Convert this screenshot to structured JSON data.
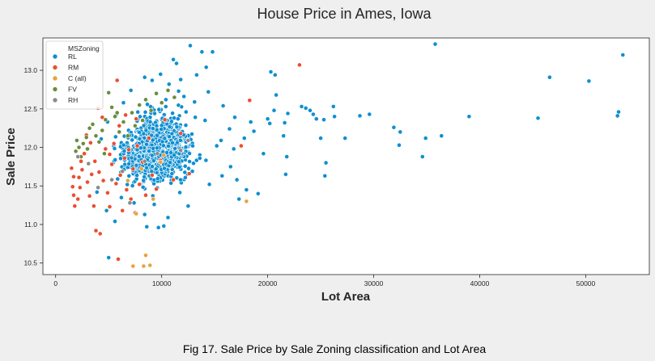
{
  "figure": {
    "caption": "Fig 17. Sale Price by Sale Zoning classification and Lot Area",
    "background": "#efefef"
  },
  "chart_data": {
    "type": "scatter",
    "title": "House Price in Ames, Iowa",
    "xlabel": "Lot Area",
    "ylabel": "Sale Price",
    "xlim": [
      -1200,
      56000
    ],
    "ylim": [
      10.35,
      13.42
    ],
    "x_ticks": [
      0,
      10000,
      20000,
      30000,
      40000,
      50000
    ],
    "y_ticks": [
      10.5,
      11.0,
      11.5,
      12.0,
      12.5,
      13.0
    ],
    "grid": false,
    "legend": {
      "title": "MSZoning",
      "placement": "upper-left",
      "entries": [
        "RL",
        "RM",
        "C (all)",
        "FV",
        "RH"
      ]
    },
    "series": [
      {
        "name": "RL",
        "color": "#0f8fd1",
        "points": [
          [
            35800,
            13.34
          ],
          [
            53500,
            13.2
          ],
          [
            46600,
            12.91
          ],
          [
            50300,
            12.86
          ],
          [
            53100,
            12.46
          ],
          [
            53000,
            12.41
          ],
          [
            45500,
            12.38
          ],
          [
            39000,
            12.4
          ],
          [
            36400,
            12.15
          ],
          [
            34600,
            11.88
          ],
          [
            34900,
            12.12
          ],
          [
            32500,
            12.2
          ],
          [
            32400,
            12.03
          ],
          [
            31900,
            12.26
          ],
          [
            29600,
            12.43
          ],
          [
            28700,
            12.41
          ],
          [
            27300,
            12.12
          ],
          [
            26300,
            12.4
          ],
          [
            26200,
            12.53
          ],
          [
            25400,
            11.63
          ],
          [
            25500,
            11.8
          ],
          [
            25300,
            12.36
          ],
          [
            25000,
            12.12
          ],
          [
            24600,
            12.37
          ],
          [
            24300,
            12.43
          ],
          [
            24000,
            12.48
          ],
          [
            23600,
            12.51
          ],
          [
            23200,
            12.53
          ],
          [
            21700,
            11.65
          ],
          [
            21800,
            11.88
          ],
          [
            21600,
            12.32
          ],
          [
            21900,
            12.44
          ],
          [
            21500,
            12.15
          ],
          [
            20700,
            12.94
          ],
          [
            20300,
            12.98
          ],
          [
            20800,
            12.68
          ],
          [
            20600,
            12.48
          ],
          [
            20200,
            12.31
          ],
          [
            20000,
            12.37
          ],
          [
            19600,
            11.92
          ],
          [
            19100,
            11.4
          ],
          [
            18700,
            12.21
          ],
          [
            18400,
            12.33
          ],
          [
            17800,
            12.12
          ],
          [
            17300,
            11.33
          ],
          [
            16800,
            11.98
          ],
          [
            16400,
            12.24
          ],
          [
            15800,
            12.54
          ],
          [
            15600,
            12.09
          ],
          [
            14800,
            13.24
          ],
          [
            14400,
            12.72
          ],
          [
            14200,
            13.04
          ],
          [
            13800,
            13.24
          ],
          [
            13300,
            12.94
          ],
          [
            12700,
            13.32
          ],
          [
            12500,
            11.24
          ],
          [
            12100,
            12.66
          ],
          [
            11800,
            12.88
          ],
          [
            11400,
            13.09
          ],
          [
            11100,
            13.14
          ],
          [
            10600,
            11.09
          ],
          [
            10200,
            10.98
          ],
          [
            9700,
            10.96
          ],
          [
            9300,
            11.26
          ],
          [
            8600,
            10.97
          ],
          [
            8400,
            11.13
          ],
          [
            5000,
            10.57
          ],
          [
            8400,
            12.91
          ],
          [
            9100,
            12.87
          ],
          [
            9900,
            12.95
          ],
          [
            10700,
            12.82
          ],
          [
            13100,
            12.59
          ],
          [
            14100,
            12.35
          ],
          [
            15200,
            12.02
          ],
          [
            16500,
            11.75
          ],
          [
            17100,
            11.58
          ],
          [
            18000,
            11.45
          ],
          [
            7100,
            12.74
          ],
          [
            6400,
            12.58
          ],
          [
            5700,
            12.42
          ],
          [
            4900,
            12.33
          ],
          [
            4300,
            12.11
          ],
          [
            3900,
            11.42
          ],
          [
            4800,
            11.18
          ],
          [
            5600,
            11.04
          ],
          [
            6200,
            11.35
          ],
          [
            7400,
            11.28
          ],
          [
            12900,
            11.69
          ],
          [
            13600,
            11.86
          ],
          [
            14500,
            11.52
          ],
          [
            15700,
            11.63
          ],
          [
            16900,
            12.39
          ],
          [
            11600,
            12.73
          ],
          [
            12300,
            12.46
          ],
          [
            10400,
            12.62
          ]
        ]
      },
      {
        "name": "RM",
        "color": "#ed4d30",
        "points": [
          [
            1500,
            11.73
          ],
          [
            1700,
            11.62
          ],
          [
            1600,
            11.49
          ],
          [
            1700,
            11.38
          ],
          [
            1800,
            11.24
          ],
          [
            2100,
            11.33
          ],
          [
            2200,
            11.61
          ],
          [
            2400,
            11.82
          ],
          [
            2500,
            11.71
          ],
          [
            2700,
            11.92
          ],
          [
            3000,
            11.55
          ],
          [
            3200,
            11.37
          ],
          [
            3400,
            11.65
          ],
          [
            3700,
            11.82
          ],
          [
            3800,
            10.92
          ],
          [
            4200,
            10.88
          ],
          [
            4500,
            11.57
          ],
          [
            4700,
            11.98
          ],
          [
            4900,
            11.41
          ],
          [
            5100,
            11.23
          ],
          [
            5300,
            11.78
          ],
          [
            5500,
            12.05
          ],
          [
            5700,
            11.53
          ],
          [
            5800,
            12.87
          ],
          [
            5900,
            10.55
          ],
          [
            6100,
            11.64
          ],
          [
            6300,
            11.18
          ],
          [
            6500,
            11.86
          ],
          [
            6700,
            11.45
          ],
          [
            6900,
            11.97
          ],
          [
            7100,
            11.33
          ],
          [
            7300,
            11.72
          ],
          [
            7500,
            11.15
          ],
          [
            7700,
            12.02
          ],
          [
            7900,
            11.52
          ],
          [
            8200,
            11.81
          ],
          [
            8500,
            11.38
          ],
          [
            8800,
            12.12
          ],
          [
            9100,
            11.64
          ],
          [
            9500,
            11.46
          ],
          [
            9900,
            11.83
          ],
          [
            10300,
            12.36
          ],
          [
            11100,
            11.58
          ],
          [
            11800,
            12.18
          ],
          [
            12600,
            11.66
          ],
          [
            17500,
            12.02
          ],
          [
            18300,
            12.61
          ],
          [
            23000,
            13.07
          ],
          [
            4000,
            12.51
          ],
          [
            4400,
            12.39
          ],
          [
            3300,
            12.06
          ],
          [
            2900,
            12.16
          ],
          [
            6000,
            12.28
          ],
          [
            6600,
            12.42
          ],
          [
            5100,
            11.91
          ],
          [
            4100,
            11.68
          ],
          [
            2300,
            11.48
          ],
          [
            3600,
            11.24
          ],
          [
            7600,
            12.37
          ]
        ]
      },
      {
        "name": "C (all)",
        "color": "#e8a33b",
        "points": [
          [
            7300,
            10.46
          ],
          [
            8300,
            10.46
          ],
          [
            8500,
            10.6
          ],
          [
            8900,
            10.47
          ],
          [
            9200,
            11.33
          ],
          [
            18000,
            11.3
          ],
          [
            6800,
            11.57
          ],
          [
            9900,
            11.81
          ],
          [
            7600,
            11.14
          ],
          [
            8100,
            11.72
          ],
          [
            10200,
            11.9
          ]
        ]
      },
      {
        "name": "FV",
        "color": "#6a8d3a",
        "points": [
          [
            2000,
            12.09
          ],
          [
            2200,
            12.0
          ],
          [
            2600,
            12.05
          ],
          [
            2900,
            12.13
          ],
          [
            3200,
            12.25
          ],
          [
            3500,
            12.3
          ],
          [
            3800,
            12.15
          ],
          [
            4100,
            12.07
          ],
          [
            4400,
            12.22
          ],
          [
            4700,
            12.36
          ],
          [
            5000,
            12.71
          ],
          [
            5300,
            12.52
          ],
          [
            5600,
            12.4
          ],
          [
            6000,
            12.2
          ],
          [
            6400,
            12.33
          ],
          [
            6800,
            12.15
          ],
          [
            7200,
            12.45
          ],
          [
            7500,
            12.28
          ],
          [
            7900,
            12.55
          ],
          [
            8200,
            12.35
          ],
          [
            8500,
            12.62
          ],
          [
            9000,
            12.48
          ],
          [
            9500,
            12.7
          ],
          [
            10000,
            12.58
          ],
          [
            10600,
            12.74
          ],
          [
            11200,
            12.65
          ],
          [
            1900,
            11.95
          ],
          [
            2400,
            11.88
          ],
          [
            3000,
            11.98
          ],
          [
            4600,
            11.92
          ],
          [
            5800,
            12.45
          ]
        ]
      },
      {
        "name": "RH",
        "color": "#8b8b8b",
        "points": [
          [
            2100,
            11.88
          ],
          [
            3100,
            11.79
          ],
          [
            4000,
            11.48
          ],
          [
            5300,
            11.58
          ],
          [
            6300,
            11.69
          ],
          [
            8400,
            11.82
          ],
          [
            9600,
            11.92
          ],
          [
            11800,
            11.96
          ],
          [
            12500,
            12.09
          ],
          [
            7000,
            11.28
          ]
        ]
      }
    ],
    "dense_cluster_RL": {
      "description_of_spread": "thousands of RL points centered near Lot Area 9500, Sale Price 12.0",
      "center": [
        9500,
        11.98
      ],
      "count": 1050
    }
  }
}
